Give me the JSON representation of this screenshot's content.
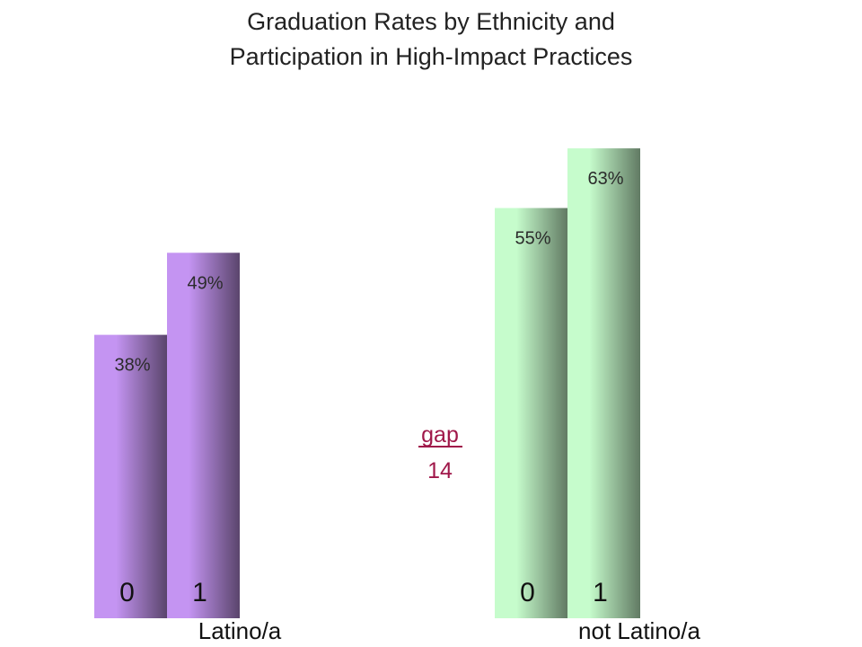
{
  "chart_data": {
    "type": "bar",
    "title_lines": [
      "Graduation Rates by Ethnicity and",
      "Participation in High-Impact Practices"
    ],
    "groups": [
      {
        "name": "Latino/a",
        "color": "#c494f2",
        "shade": "#5a456c",
        "bars": [
          {
            "category": "0",
            "value": 38,
            "label": "38%"
          },
          {
            "category": "1",
            "value": 49,
            "label": "49%"
          }
        ]
      },
      {
        "name": "not Latino/a",
        "color": "#c6fccc",
        "shade": "#617a63",
        "bars": [
          {
            "category": "0",
            "value": 55,
            "label": "55%"
          },
          {
            "category": "1",
            "value": 63,
            "label": "63%"
          }
        ]
      }
    ],
    "annotation": {
      "line1": "gap",
      "line2": "14",
      "color": "#a0184a"
    },
    "ylim": [
      0,
      100
    ],
    "grid": false,
    "legend": "none"
  }
}
